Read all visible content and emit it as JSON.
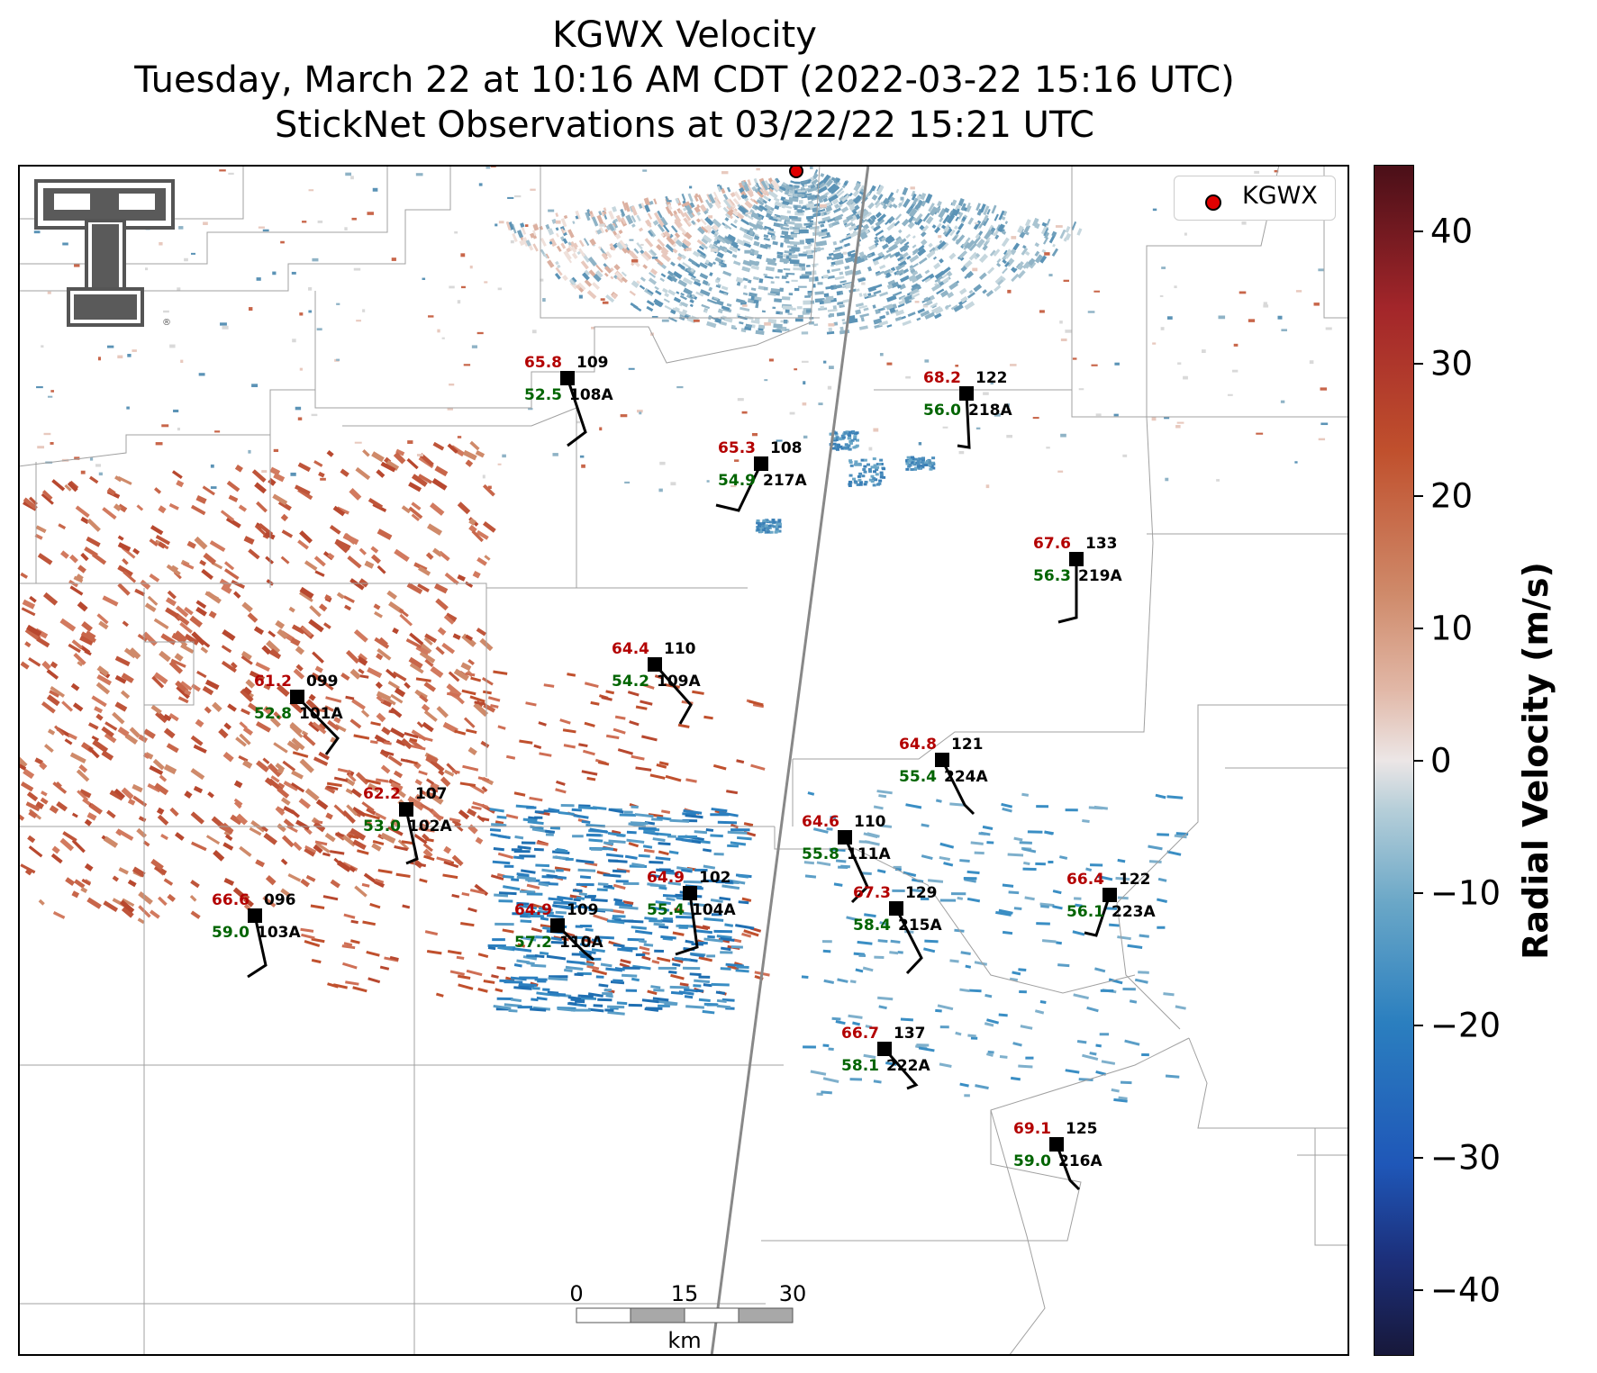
{
  "title": {
    "line1": "KGWX Velocity",
    "line2": "Tuesday, March 22 at 10:16 AM CDT (2022-03-22 15:16 UTC)",
    "line3": "StickNet Observations at 03/22/22 15:21 UTC"
  },
  "legend": {
    "label": "KGWX",
    "marker_color": "#e00000"
  },
  "colorbar": {
    "label": "Radial Velocity (m/s)",
    "min": -45,
    "max": 45,
    "ticks": [
      {
        "value": 40,
        "label": "40"
      },
      {
        "value": 30,
        "label": "30"
      },
      {
        "value": 20,
        "label": "20"
      },
      {
        "value": 10,
        "label": "10"
      },
      {
        "value": 0,
        "label": "0"
      },
      {
        "value": -10,
        "label": "−10"
      },
      {
        "value": -20,
        "label": "−20"
      },
      {
        "value": -30,
        "label": "−30"
      },
      {
        "value": -40,
        "label": "−40"
      }
    ]
  },
  "scale_bar": {
    "labels": [
      "0",
      "15",
      "30"
    ],
    "unit": "km"
  },
  "colors": {
    "temperature": "#b30000",
    "dewpoint": "#006400",
    "station": "#000000"
  },
  "stations": [
    {
      "id": "108A",
      "pressure": "109",
      "temp": "65.8",
      "dew": "52.5"
    },
    {
      "id": "217A",
      "pressure": "108",
      "temp": "65.3",
      "dew": "54.9"
    },
    {
      "id": "218A",
      "pressure": "122",
      "temp": "68.2",
      "dew": "56.0"
    },
    {
      "id": "219A",
      "pressure": "133",
      "temp": "67.6",
      "dew": "56.3"
    },
    {
      "id": "109A",
      "pressure": "110",
      "temp": "64.4",
      "dew": "54.2"
    },
    {
      "id": "101A",
      "pressure": "099",
      "temp": "61.2",
      "dew": "52.8"
    },
    {
      "id": "224A",
      "pressure": "121",
      "temp": "64.8",
      "dew": "55.4"
    },
    {
      "id": "102A",
      "pressure": "107",
      "temp": "62.2",
      "dew": "53.0"
    },
    {
      "id": "111A",
      "pressure": "110",
      "temp": "64.6",
      "dew": "55.8"
    },
    {
      "id": "104A",
      "pressure": "102",
      "temp": "64.9",
      "dew": "55.4"
    },
    {
      "id": "215A",
      "pressure": "129",
      "temp": "67.3",
      "dew": "58.4"
    },
    {
      "id": "223A",
      "pressure": "122",
      "temp": "66.4",
      "dew": "56.1"
    },
    {
      "id": "103A",
      "pressure": "096",
      "temp": "66.6",
      "dew": "59.0"
    },
    {
      "id": "110A",
      "pressure": "109",
      "temp": "64.9",
      "dew": "57.2"
    },
    {
      "id": "222A",
      "pressure": "137",
      "temp": "66.7",
      "dew": "58.1"
    },
    {
      "id": "216A",
      "pressure": "125",
      "temp": "69.1",
      "dew": "59.0"
    }
  ]
}
